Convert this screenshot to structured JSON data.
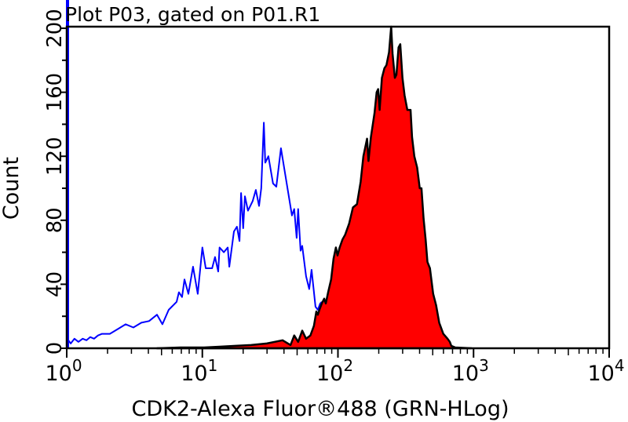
{
  "chart_data": {
    "type": "area",
    "title": "Plot P03, gated on P01.R1",
    "xlabel": "CDK2-Alexa Fluor®488 (GRN-HLog)",
    "ylabel": "Count",
    "xscale": "log",
    "xlim": [
      1,
      10000
    ],
    "ylim": [
      0,
      201
    ],
    "x_ticks": [
      {
        "value": 1,
        "base": "10",
        "exp": "0"
      },
      {
        "value": 10,
        "base": "10",
        "exp": "1"
      },
      {
        "value": 100,
        "base": "10",
        "exp": "2"
      },
      {
        "value": 1000,
        "base": "10",
        "exp": "3"
      },
      {
        "value": 10000,
        "base": "10",
        "exp": "4"
      }
    ],
    "y_ticks": [
      0,
      40,
      80,
      120,
      160,
      200
    ],
    "grid": false,
    "series": [
      {
        "style": "outline",
        "color": "#0000ff",
        "offscale_first_bin": true,
        "points": [
          [
            1.01,
            6
          ],
          [
            1.07,
            3
          ],
          [
            1.14,
            6
          ],
          [
            1.22,
            4
          ],
          [
            1.31,
            6
          ],
          [
            1.4,
            5
          ],
          [
            1.49,
            7
          ],
          [
            1.59,
            6
          ],
          [
            1.7,
            8
          ],
          [
            1.82,
            9
          ],
          [
            2.08,
            9
          ],
          [
            2.38,
            12
          ],
          [
            2.72,
            15
          ],
          [
            3.1,
            13
          ],
          [
            3.55,
            16
          ],
          [
            4.05,
            17
          ],
          [
            4.63,
            21
          ],
          [
            5.08,
            15
          ],
          [
            5.65,
            24
          ],
          [
            6.46,
            29
          ],
          [
            6.72,
            35
          ],
          [
            7.09,
            32
          ],
          [
            7.38,
            43
          ],
          [
            7.89,
            34
          ],
          [
            8.54,
            51
          ],
          [
            9.25,
            34
          ],
          [
            10.0,
            63
          ],
          [
            10.6,
            50
          ],
          [
            11.0,
            50
          ],
          [
            11.8,
            50
          ],
          [
            12.4,
            57
          ],
          [
            13.1,
            48
          ],
          [
            13.4,
            63
          ],
          [
            14.4,
            60
          ],
          [
            15.4,
            63
          ],
          [
            15.8,
            51
          ],
          [
            17.1,
            73
          ],
          [
            18.0,
            76
          ],
          [
            18.8,
            67
          ],
          [
            19.3,
            97
          ],
          [
            20.0,
            75
          ],
          [
            20.6,
            95
          ],
          [
            21.7,
            86
          ],
          [
            23.5,
            92
          ],
          [
            24.8,
            99
          ],
          [
            26.2,
            89
          ],
          [
            27.2,
            100
          ],
          [
            28.4,
            141
          ],
          [
            29.1,
            116
          ],
          [
            30.7,
            120
          ],
          [
            33.2,
            103
          ],
          [
            35.1,
            101
          ],
          [
            38.0,
            125
          ],
          [
            40.1,
            113
          ],
          [
            43.4,
            95
          ],
          [
            45.8,
            83
          ],
          [
            47.6,
            87
          ],
          [
            49.6,
            69
          ],
          [
            50.9,
            87
          ],
          [
            53.0,
            61
          ],
          [
            54.5,
            64
          ],
          [
            58.2,
            45
          ],
          [
            61.4,
            37
          ],
          [
            63.9,
            49
          ],
          [
            68.3,
            26
          ],
          [
            71.1,
            24
          ],
          [
            74.0,
            28
          ],
          [
            76.0,
            29
          ]
        ]
      },
      {
        "style": "filled",
        "color": "#ff0000",
        "outline_color": "#000000",
        "points": [
          [
            4.63,
            0
          ],
          [
            6.9,
            0.5
          ],
          [
            10.3,
            0.5
          ],
          [
            13.4,
            1
          ],
          [
            17.6,
            1.5
          ],
          [
            22.9,
            2
          ],
          [
            29.9,
            3
          ],
          [
            34.2,
            4
          ],
          [
            39.1,
            5
          ],
          [
            44.7,
            2
          ],
          [
            47.6,
            8
          ],
          [
            50.9,
            4
          ],
          [
            54.5,
            11
          ],
          [
            58.2,
            6
          ],
          [
            62.6,
            8
          ],
          [
            66.5,
            14
          ],
          [
            69.3,
            23
          ],
          [
            71.1,
            21
          ],
          [
            73.0,
            24
          ],
          [
            76.0,
            28
          ],
          [
            79.2,
            31
          ],
          [
            81.3,
            28
          ],
          [
            84.6,
            35
          ],
          [
            89.1,
            43
          ],
          [
            92.8,
            56
          ],
          [
            96.6,
            63
          ],
          [
            99.3,
            58
          ],
          [
            103,
            63
          ],
          [
            108,
            68
          ],
          [
            113,
            71
          ],
          [
            121,
            78
          ],
          [
            129,
            88
          ],
          [
            138,
            90
          ],
          [
            147,
            104
          ],
          [
            154,
            120
          ],
          [
            164,
            131
          ],
          [
            168,
            117
          ],
          [
            175,
            132
          ],
          [
            186,
            147
          ],
          [
            193,
            160
          ],
          [
            198,
            162
          ],
          [
            203,
            149
          ],
          [
            211,
            169
          ],
          [
            220,
            175
          ],
          [
            228,
            177
          ],
          [
            238,
            185
          ],
          [
            247,
            201
          ],
          [
            253,
            184
          ],
          [
            263,
            169
          ],
          [
            270,
            171
          ],
          [
            280,
            188
          ],
          [
            288,
            190
          ],
          [
            299,
            169
          ],
          [
            310,
            158
          ],
          [
            325,
            149
          ],
          [
            343,
            149
          ],
          [
            352,
            132
          ],
          [
            366,
            120
          ],
          [
            384,
            113
          ],
          [
            401,
            100
          ],
          [
            413,
            100
          ],
          [
            428,
            81
          ],
          [
            443,
            68
          ],
          [
            457,
            54
          ],
          [
            477,
            50
          ],
          [
            504,
            34
          ],
          [
            529,
            27
          ],
          [
            558,
            16
          ],
          [
            598,
            9
          ],
          [
            643,
            6
          ],
          [
            668,
            4
          ],
          [
            685,
            1.5
          ],
          [
            734,
            0.5
          ],
          [
            969,
            0
          ]
        ]
      }
    ]
  }
}
